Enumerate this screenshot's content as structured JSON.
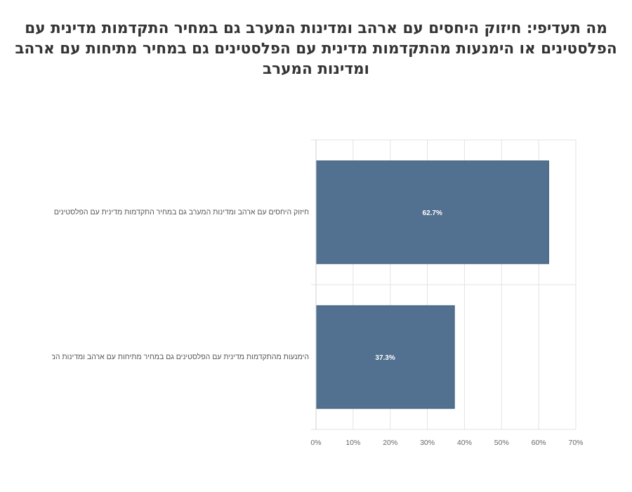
{
  "chart_data": {
    "type": "bar",
    "orientation": "horizontal",
    "title": "מה תעדיפי: חיזוק היחסים עם ארהב ומדינות המערב גם במחיר התקדמות מדינית עם הפלסטינים או הימנעות מהתקדמות מדינית עם הפלסטינים גם במחיר מתיחות עם ארהב ומדינות המערב",
    "categories": [
      "חיזוק היחסים עם ארהב ומדינות המערב גם במחיר התקדמות מדינית עם הפלסטינים",
      "הימנעות מהתקדמות מדינית עם הפלסטינים גם במחיר מתיחות עם ארהב ומדינות המערב"
    ],
    "values": [
      62.7,
      37.3
    ],
    "data_labels": [
      "62.7%",
      "37.3%"
    ],
    "xlim": [
      0,
      70
    ],
    "x_ticks": [
      "0%",
      "10%",
      "20%",
      "30%",
      "40%",
      "50%",
      "60%",
      "70%"
    ],
    "grid": true,
    "legend": "none",
    "bar_color": "#52708f"
  }
}
